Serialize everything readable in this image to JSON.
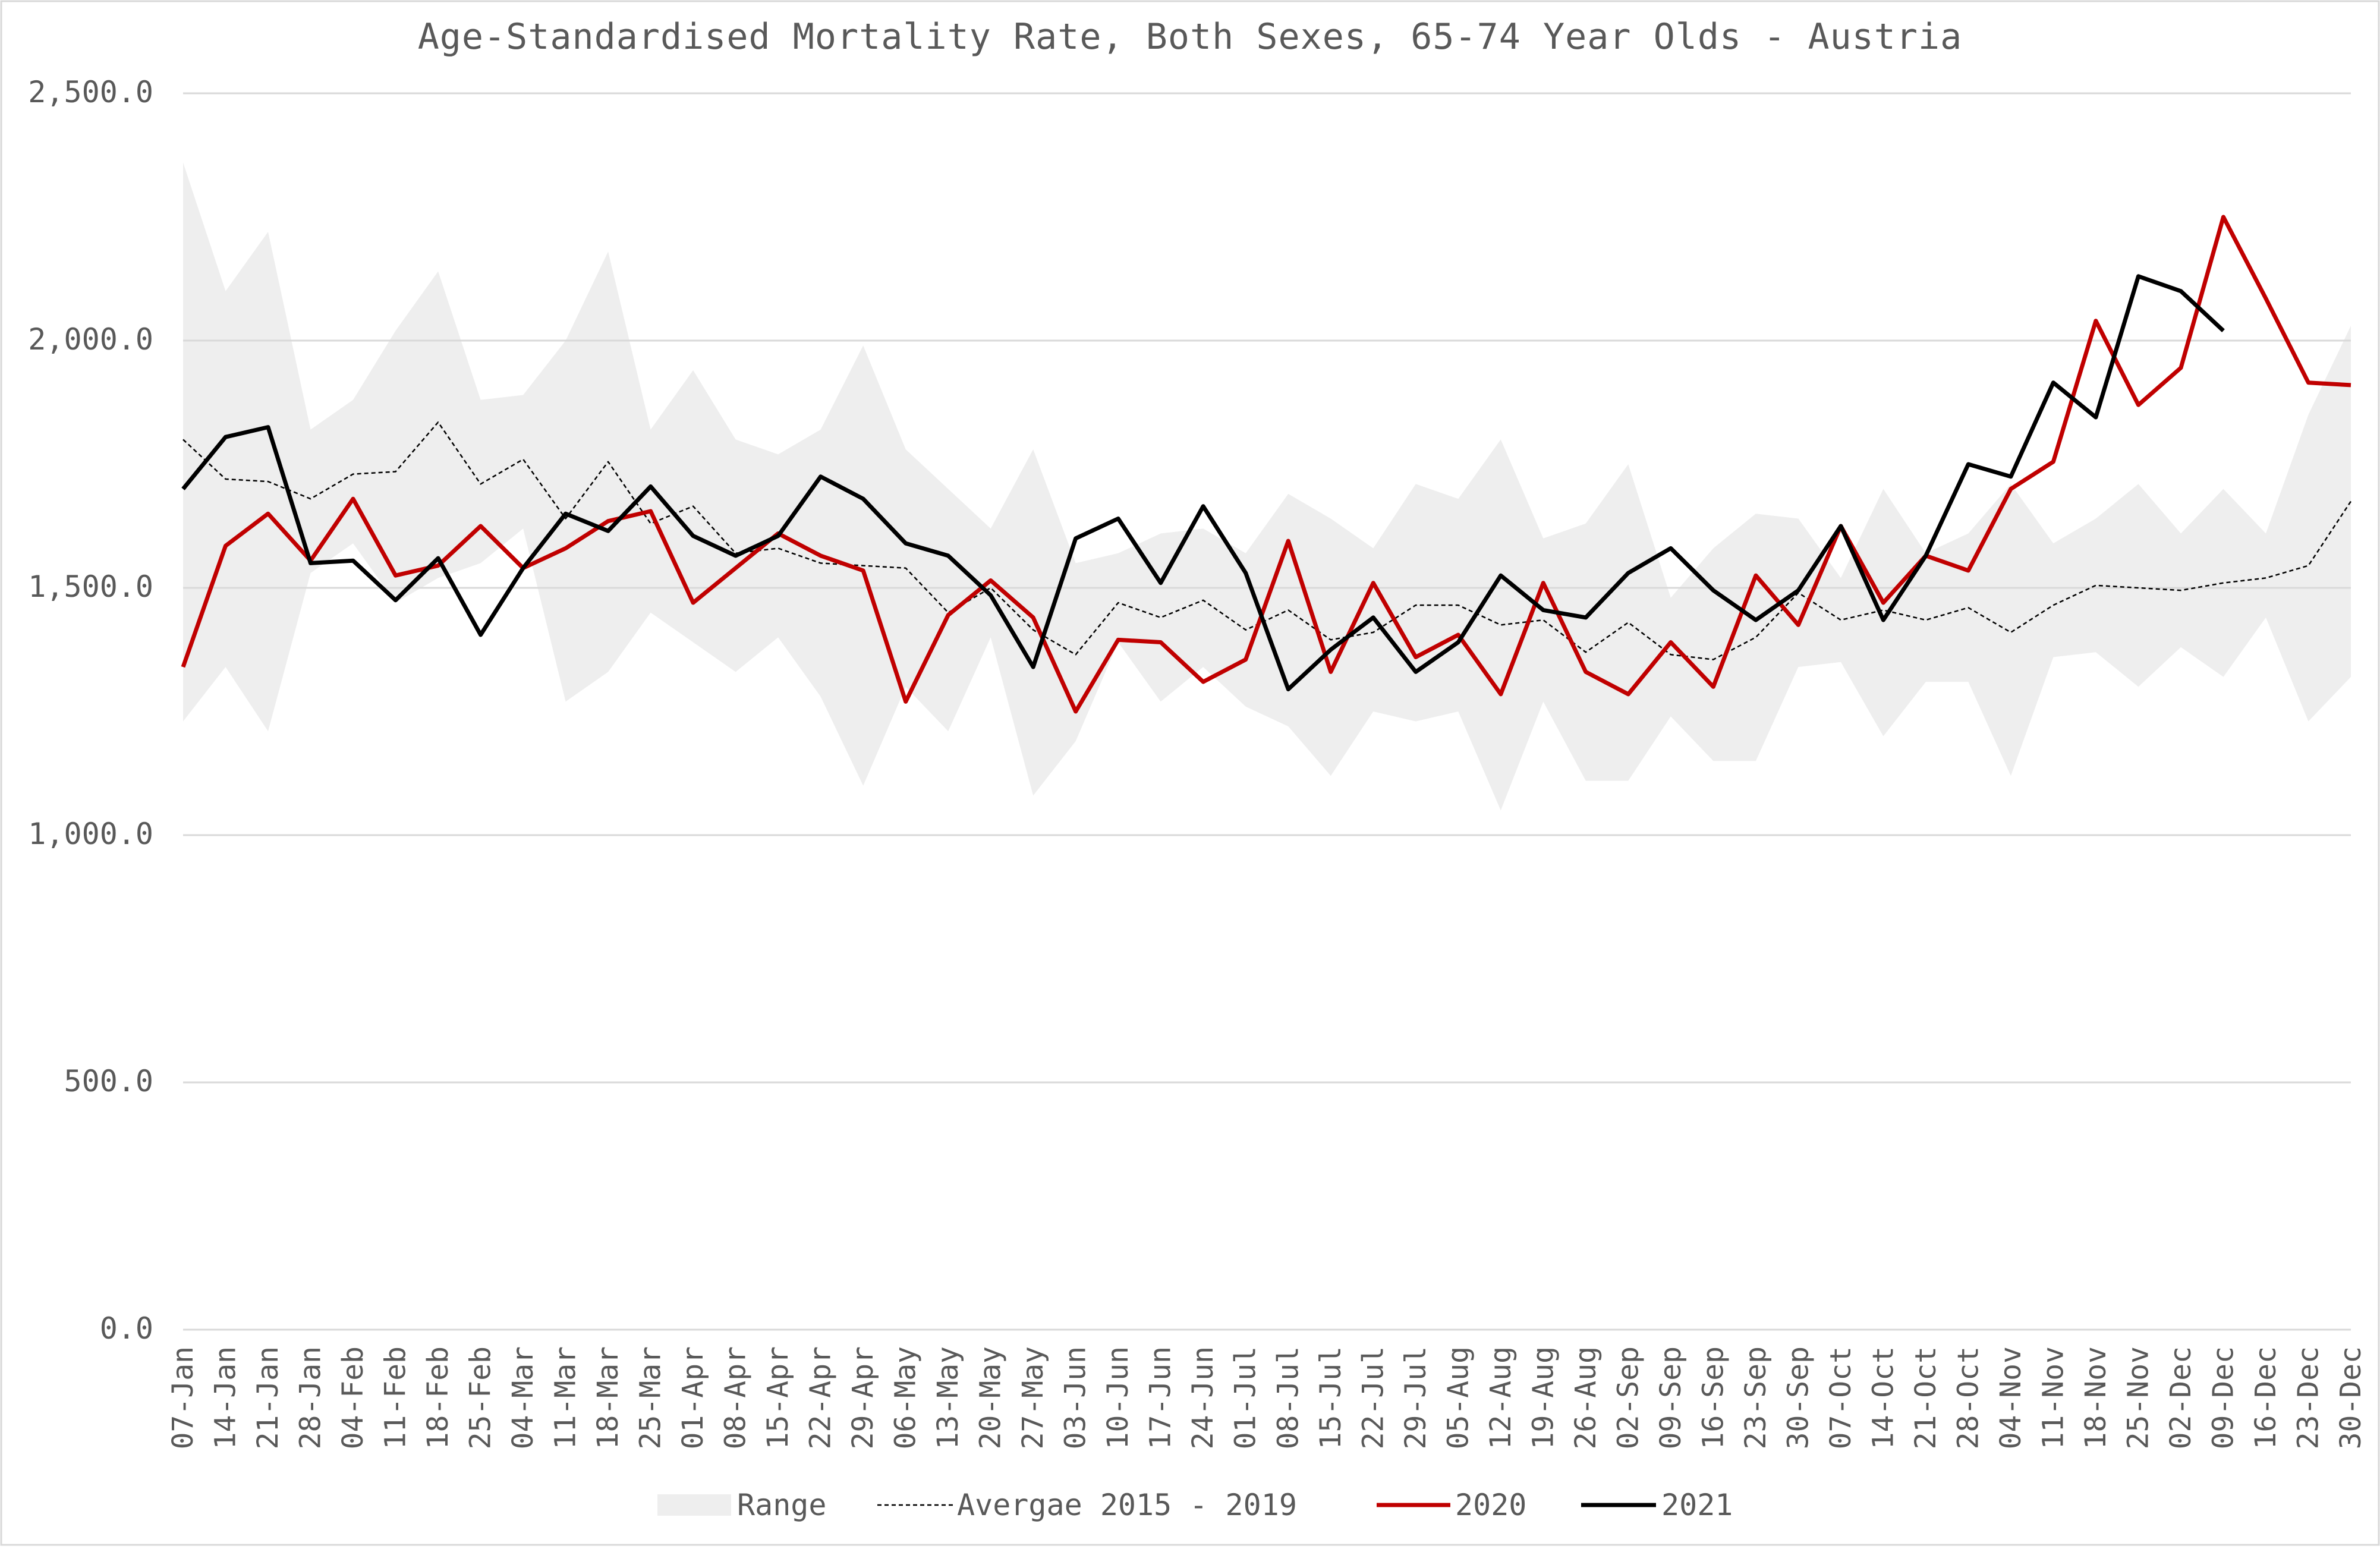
{
  "chart_data": {
    "type": "line",
    "title": "Age-Standardised Mortality Rate, Both Sexes, 65-74 Year Olds - Austria",
    "ylim": [
      0,
      2500
    ],
    "yticks": [
      "0.0",
      "500.0",
      "1,000.0",
      "1,500.0",
      "2,000.0",
      "2,500.0"
    ],
    "ytick_values": [
      0,
      500,
      1000,
      1500,
      2000,
      2500
    ],
    "grid": true,
    "legend_position": "bottom",
    "categories": [
      "07-Jan",
      "14-Jan",
      "21-Jan",
      "28-Jan",
      "04-Feb",
      "11-Feb",
      "18-Feb",
      "25-Feb",
      "04-Mar",
      "11-Mar",
      "18-Mar",
      "25-Mar",
      "01-Apr",
      "08-Apr",
      "15-Apr",
      "22-Apr",
      "29-Apr",
      "06-May",
      "13-May",
      "20-May",
      "27-May",
      "03-Jun",
      "10-Jun",
      "17-Jun",
      "24-Jun",
      "01-Jul",
      "08-Jul",
      "15-Jul",
      "22-Jul",
      "29-Jul",
      "05-Aug",
      "12-Aug",
      "19-Aug",
      "26-Aug",
      "02-Sep",
      "09-Sep",
      "16-Sep",
      "23-Sep",
      "30-Sep",
      "07-Oct",
      "14-Oct",
      "21-Oct",
      "28-Oct",
      "04-Nov",
      "11-Nov",
      "18-Nov",
      "25-Nov",
      "02-Dec",
      "09-Dec",
      "16-Dec",
      "23-Dec",
      "30-Dec"
    ],
    "range": {
      "name": "Range",
      "color": "#eeeeee",
      "upper": [
        2360,
        2100,
        2220,
        1820,
        1880,
        2020,
        2140,
        1880,
        1890,
        2000,
        2180,
        1820,
        1940,
        1800,
        1770,
        1820,
        1990,
        1780,
        1700,
        1620,
        1780,
        1550,
        1570,
        1610,
        1620,
        1570,
        1690,
        1640,
        1580,
        1710,
        1680,
        1800,
        1600,
        1630,
        1750,
        1480,
        1580,
        1650,
        1640,
        1520,
        1700,
        1570,
        1610,
        1710,
        1590,
        1640,
        1710,
        1610,
        1700,
        1610,
        1850,
        2030
      ],
      "lower": [
        1230,
        1340,
        1210,
        1530,
        1590,
        1470,
        1520,
        1550,
        1620,
        1270,
        1330,
        1450,
        1390,
        1330,
        1400,
        1280,
        1100,
        1300,
        1210,
        1400,
        1080,
        1190,
        1390,
        1270,
        1340,
        1260,
        1220,
        1120,
        1250,
        1230,
        1250,
        1050,
        1270,
        1110,
        1110,
        1240,
        1150,
        1150,
        1340,
        1350,
        1200,
        1310,
        1310,
        1120,
        1360,
        1370,
        1300,
        1380,
        1320,
        1440,
        1230,
        1320
      ]
    },
    "series": [
      {
        "name": "Avergae 2015 - 2019",
        "color": "#000000",
        "dashed": true,
        "values": [
          1800,
          1720,
          1715,
          1680,
          1730,
          1735,
          1835,
          1710,
          1760,
          1640,
          1755,
          1630,
          1665,
          1570,
          1580,
          1550,
          1545,
          1540,
          1450,
          1500,
          1415,
          1365,
          1470,
          1440,
          1475,
          1415,
          1455,
          1395,
          1410,
          1465,
          1465,
          1425,
          1435,
          1370,
          1430,
          1365,
          1355,
          1400,
          1490,
          1435,
          1455,
          1435,
          1460,
          1410,
          1465,
          1505,
          1500,
          1495,
          1510,
          1520,
          1545,
          1675
        ]
      },
      {
        "name": "2020",
        "color": "#c00000",
        "dashed": false,
        "values": [
          1340,
          1585,
          1650,
          1555,
          1680,
          1525,
          1545,
          1625,
          1540,
          1580,
          1635,
          1655,
          1470,
          1540,
          1610,
          1565,
          1535,
          1270,
          1445,
          1515,
          1440,
          1250,
          1395,
          1390,
          1310,
          1355,
          1595,
          1330,
          1510,
          1360,
          1405,
          1285,
          1510,
          1330,
          1285,
          1390,
          1300,
          1525,
          1425,
          1625,
          1470,
          1565,
          1535,
          1700,
          1755,
          2040,
          1870,
          1945,
          2250,
          2085,
          1915,
          1910
        ]
      },
      {
        "name": "2021",
        "color": "#000000",
        "dashed": false,
        "values": [
          1700,
          1805,
          1825,
          1550,
          1555,
          1475,
          1560,
          1405,
          1540,
          1650,
          1615,
          1705,
          1605,
          1565,
          1605,
          1725,
          1680,
          1590,
          1565,
          1485,
          1340,
          1600,
          1640,
          1510,
          1665,
          1530,
          1295,
          1375,
          1440,
          1330,
          1390,
          1525,
          1455,
          1440,
          1530,
          1580,
          1495,
          1435,
          1495,
          1625,
          1435,
          1565,
          1750,
          1725,
          1915,
          1845,
          2130,
          2100,
          2020,
          null,
          null,
          null
        ]
      }
    ],
    "legend": [
      "Range",
      "Avergae 2015 - 2019",
      "2020",
      "2021"
    ]
  }
}
